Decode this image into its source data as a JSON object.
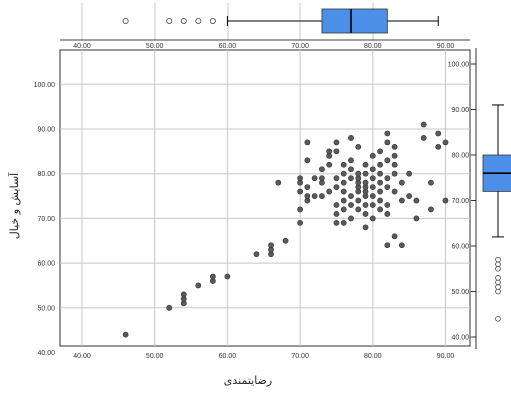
{
  "chart_data": [
    {
      "type": "scatter",
      "xlabel": "رضایتمندی",
      "ylabel": "آسایش و خیال",
      "xlim": [
        40,
        90
      ],
      "ylim": [
        40,
        100
      ],
      "x_ticks": [
        "40.00",
        "50.00",
        "60.00",
        "70.00",
        "80.00",
        "90.00"
      ],
      "y_ticks": [
        "40.00",
        "50.00",
        "60.00",
        "70.00",
        "80.00",
        "90.00",
        "100.00"
      ],
      "grid": true,
      "points": [
        [
          46,
          44
        ],
        [
          52,
          50
        ],
        [
          54,
          51
        ],
        [
          54,
          52
        ],
        [
          54,
          53
        ],
        [
          56,
          55
        ],
        [
          58,
          56
        ],
        [
          58,
          57
        ],
        [
          60,
          57
        ],
        [
          64,
          62
        ],
        [
          66,
          62
        ],
        [
          66,
          63
        ],
        [
          66,
          64
        ],
        [
          68,
          65
        ],
        [
          70,
          69
        ],
        [
          67,
          78
        ],
        [
          70,
          72
        ],
        [
          70,
          76
        ],
        [
          70,
          78
        ],
        [
          70,
          79
        ],
        [
          71,
          74
        ],
        [
          71,
          75
        ],
        [
          71,
          77
        ],
        [
          71,
          83
        ],
        [
          71,
          87
        ],
        [
          72,
          75
        ],
        [
          72,
          79
        ],
        [
          73,
          75
        ],
        [
          73,
          78
        ],
        [
          73,
          79
        ],
        [
          73,
          81
        ],
        [
          74,
          76
        ],
        [
          74,
          82
        ],
        [
          74,
          84
        ],
        [
          74,
          85
        ],
        [
          75,
          69
        ],
        [
          75,
          71
        ],
        [
          75,
          73
        ],
        [
          75,
          77
        ],
        [
          75,
          79
        ],
        [
          75,
          85
        ],
        [
          75,
          87
        ],
        [
          76,
          69
        ],
        [
          76,
          72
        ],
        [
          76,
          74
        ],
        [
          76,
          76
        ],
        [
          76,
          78
        ],
        [
          76,
          80
        ],
        [
          76,
          82
        ],
        [
          77,
          70
        ],
        [
          77,
          73
        ],
        [
          77,
          75
        ],
        [
          77,
          79
        ],
        [
          77,
          81
        ],
        [
          77,
          83
        ],
        [
          77,
          88
        ],
        [
          78,
          72
        ],
        [
          78,
          74
        ],
        [
          78,
          76
        ],
        [
          78,
          77
        ],
        [
          78,
          78
        ],
        [
          78,
          79
        ],
        [
          78,
          80
        ],
        [
          78,
          86
        ],
        [
          79,
          68
        ],
        [
          79,
          71
        ],
        [
          79,
          73
        ],
        [
          79,
          75
        ],
        [
          79,
          76
        ],
        [
          79,
          77
        ],
        [
          79,
          78
        ],
        [
          79,
          80
        ],
        [
          79,
          82
        ],
        [
          80,
          70
        ],
        [
          80,
          73
        ],
        [
          80,
          75
        ],
        [
          80,
          77
        ],
        [
          80,
          79
        ],
        [
          80,
          81
        ],
        [
          80,
          84
        ],
        [
          81,
          72
        ],
        [
          81,
          74
        ],
        [
          81,
          76
        ],
        [
          81,
          78
        ],
        [
          81,
          80
        ],
        [
          81,
          82
        ],
        [
          81,
          85
        ],
        [
          82,
          64
        ],
        [
          82,
          71
        ],
        [
          82,
          73
        ],
        [
          82,
          77
        ],
        [
          82,
          79
        ],
        [
          82,
          83
        ],
        [
          82,
          87
        ],
        [
          82,
          89
        ],
        [
          83,
          66
        ],
        [
          83,
          76
        ],
        [
          83,
          80
        ],
        [
          83,
          82
        ],
        [
          83,
          84
        ],
        [
          83,
          86
        ],
        [
          84,
          74
        ],
        [
          84,
          78
        ],
        [
          84,
          64
        ],
        [
          85,
          75
        ],
        [
          85,
          80
        ],
        [
          86,
          70
        ],
        [
          86,
          74
        ],
        [
          87,
          88
        ],
        [
          87,
          91
        ],
        [
          88,
          72
        ],
        [
          88,
          78
        ],
        [
          89,
          86
        ],
        [
          89,
          89
        ],
        [
          90,
          74
        ],
        [
          90,
          87
        ]
      ]
    },
    {
      "type": "boxplot",
      "orientation": "horizontal",
      "variable": "رضایتمندی",
      "whisker_low": 60,
      "q1": 73,
      "median": 77,
      "q3": 82,
      "whisker_high": 89,
      "outliers": [
        46,
        52,
        54,
        56,
        58
      ],
      "box_color": "#4b8fe8"
    },
    {
      "type": "boxplot",
      "orientation": "vertical",
      "variable": "آسایش و خیال",
      "whisker_low": 62,
      "q1": 72,
      "median": 76,
      "q3": 80,
      "whisker_high": 91,
      "outliers": [
        44,
        50,
        51,
        52,
        53,
        55,
        56,
        57
      ],
      "box_color": "#4b8fe8"
    }
  ]
}
